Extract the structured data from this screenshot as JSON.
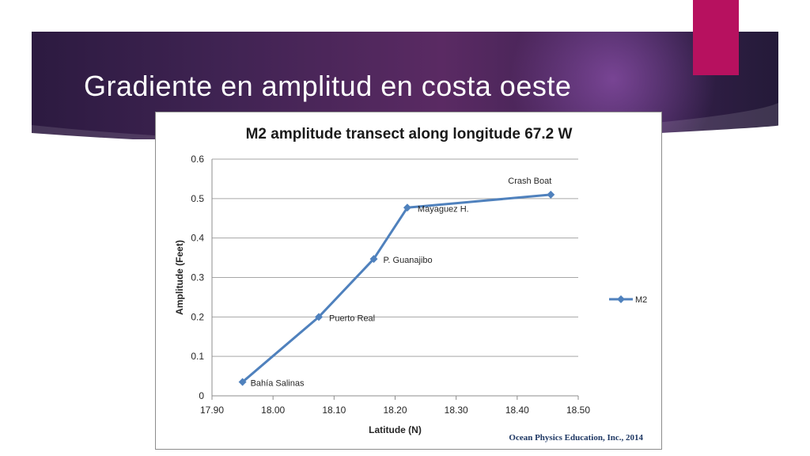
{
  "slide": {
    "title": "Gradiente en amplitud en costa oeste",
    "accent_color": "#b7115f"
  },
  "chart_data": {
    "type": "line",
    "title": "M2 amplitude transect along longitude 67.2 W",
    "xlabel": "Latitude (N)",
    "ylabel": "Amplitude (Feet)",
    "xlim": [
      17.9,
      18.5
    ],
    "ylim": [
      0,
      0.6
    ],
    "x_ticks": [
      "17.90",
      "18.00",
      "18.10",
      "18.20",
      "18.30",
      "18.40",
      "18.50"
    ],
    "y_ticks": [
      "0",
      "0.1",
      "0.2",
      "0.3",
      "0.4",
      "0.5",
      "0.6"
    ],
    "grid": "horizontal",
    "legend_position": "right",
    "series": [
      {
        "name": "M2",
        "color": "#4f81bd",
        "points": [
          {
            "x": 17.95,
            "y": 0.035,
            "label": "Bahía Salinas"
          },
          {
            "x": 18.075,
            "y": 0.2,
            "label": "Puerto Real"
          },
          {
            "x": 18.165,
            "y": 0.347,
            "label": "P. Guanajibo"
          },
          {
            "x": 18.22,
            "y": 0.477,
            "label": "Mayaguez H."
          },
          {
            "x": 18.455,
            "y": 0.51,
            "label": "Crash Boat"
          }
        ]
      }
    ],
    "credit": "Ocean Physics Education, Inc., 2014"
  }
}
